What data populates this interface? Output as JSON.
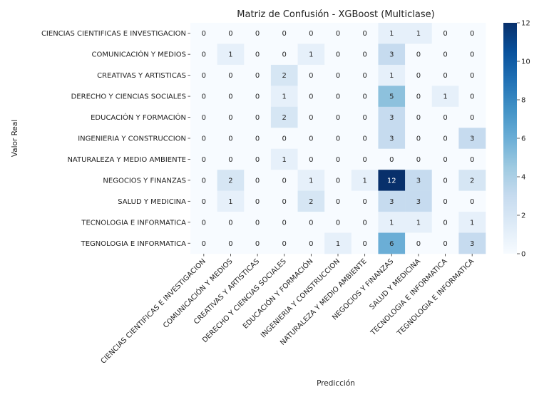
{
  "chart_data": {
    "type": "heatmap",
    "title": "Matriz de Confusión - XGBoost (Multiclase)",
    "xlabel": "Predicción",
    "ylabel": "Valor Real",
    "row_labels": [
      "CIENCIAS CIENTIFICAS E INVESTIGACION",
      "COMUNICACIÓN Y MEDIOS",
      "CREATIVAS Y ARTISTICAS",
      "DERECHO Y CIENCIAS SOCIALES",
      "EDUCACIÓN Y FORMACIÓN",
      "INGENIERIA Y CONSTRUCCION",
      "NATURALEZA Y MEDIO AMBIENTE",
      "NEGOCIOS Y FINANZAS",
      "SALUD Y MEDICINA",
      "TECNOLOGIA E INFORMATICA",
      "TEGNOLOGIA E INFORMATICA"
    ],
    "col_labels": [
      "CIENCIAS CIENTIFICAS E INVESTIGACION",
      "COMUNICACIÓN Y MEDIOS",
      "CREATIVAS Y ARTISTICAS",
      "DERECHO Y CIENCIAS SOCIALES",
      "EDUCACIÓN Y FORMACIÓN",
      "INGENIERIA Y CONSTRUCCION",
      "NATURALEZA Y MEDIO AMBIENTE",
      "NEGOCIOS Y FINANZAS",
      "SALUD Y MEDICINA",
      "TECNOLOGIA E INFORMATICA",
      "TEGNOLOGIA E INFORMATICA"
    ],
    "values": [
      [
        0,
        0,
        0,
        0,
        0,
        0,
        0,
        1,
        1,
        0,
        0
      ],
      [
        0,
        1,
        0,
        0,
        1,
        0,
        0,
        3,
        0,
        0,
        0
      ],
      [
        0,
        0,
        0,
        2,
        0,
        0,
        0,
        1,
        0,
        0,
        0
      ],
      [
        0,
        0,
        0,
        1,
        0,
        0,
        0,
        5,
        0,
        1,
        0
      ],
      [
        0,
        0,
        0,
        2,
        0,
        0,
        0,
        3,
        0,
        0,
        0
      ],
      [
        0,
        0,
        0,
        0,
        0,
        0,
        0,
        3,
        0,
        0,
        3
      ],
      [
        0,
        0,
        0,
        1,
        0,
        0,
        0,
        0,
        0,
        0,
        0
      ],
      [
        0,
        2,
        0,
        0,
        1,
        0,
        1,
        12,
        3,
        0,
        2
      ],
      [
        0,
        1,
        0,
        0,
        2,
        0,
        0,
        3,
        3,
        0,
        0
      ],
      [
        0,
        0,
        0,
        0,
        0,
        0,
        0,
        1,
        1,
        0,
        1
      ],
      [
        0,
        0,
        0,
        0,
        0,
        1,
        0,
        6,
        0,
        0,
        3
      ]
    ],
    "colorbar": {
      "min": 0,
      "max": 12,
      "ticks": [
        "0",
        "2",
        "4",
        "6",
        "8",
        "10",
        "12"
      ]
    },
    "colormap": "Blues",
    "grid": false
  }
}
